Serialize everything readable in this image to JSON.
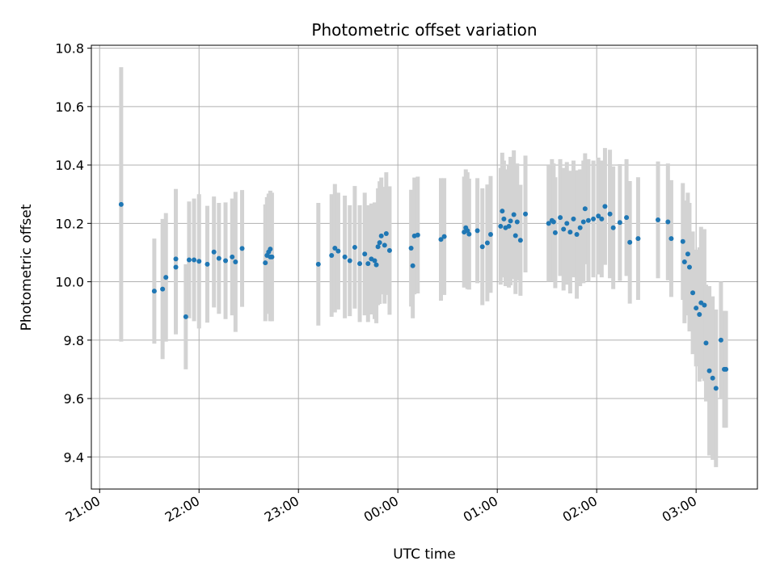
{
  "chart_data": {
    "type": "scatter",
    "title": "Photometric offset variation",
    "xlabel": "UTC time",
    "ylabel": "Photometric offset",
    "xlim": [
      "20:55",
      "03:37"
    ],
    "ylim": [
      9.29,
      10.81
    ],
    "x_ticks": [
      "21:00",
      "22:00",
      "23:00",
      "00:00",
      "01:00",
      "02:00",
      "03:00"
    ],
    "y_ticks": [
      "9.4",
      "9.6",
      "9.8",
      "10.0",
      "10.2",
      "10.4",
      "10.6",
      "10.8"
    ],
    "grid": true,
    "colors": {
      "points": "#1f77b4",
      "error_bars": "#d3d3d3",
      "grid": "#b0b0b0"
    },
    "series": [
      {
        "x": [
          "21:13",
          "21:33",
          "21:38",
          "21:40",
          "21:46",
          "21:46",
          "21:52",
          "21:54",
          "21:57",
          "22:00",
          "22:05",
          "22:09",
          "22:12",
          "22:16",
          "22:20",
          "22:22",
          "22:26",
          "22:40",
          "22:41",
          "22:42",
          "22:43",
          "22:43",
          "22:44",
          "23:12",
          "23:20",
          "23:22",
          "23:24",
          "23:28",
          "23:31",
          "23:34",
          "23:37",
          "23:40",
          "23:42",
          "23:44",
          "23:46",
          "23:47",
          "23:48",
          "23:49",
          "23:50",
          "23:52",
          "23:53",
          "23:55",
          "00:08",
          "00:09",
          "00:10",
          "00:12",
          "00:26",
          "00:28",
          "00:40",
          "00:41",
          "00:42",
          "00:43",
          "00:48",
          "00:51",
          "00:54",
          "00:56",
          "01:02",
          "01:03",
          "01:04",
          "01:05",
          "01:07",
          "01:08",
          "01:10",
          "01:11",
          "01:12",
          "01:14",
          "01:17",
          "01:31",
          "01:33",
          "01:34",
          "01:35",
          "01:38",
          "01:40",
          "01:42",
          "01:44",
          "01:46",
          "01:48",
          "01:50",
          "01:52",
          "01:53",
          "01:55",
          "01:58",
          "02:01",
          "02:03",
          "02:05",
          "02:08",
          "02:10",
          "02:14",
          "02:18",
          "02:20",
          "02:25",
          "02:37",
          "02:43",
          "02:45",
          "02:52",
          "02:53",
          "02:55",
          "02:56",
          "02:58",
          "03:00",
          "03:02",
          "03:03",
          "03:05",
          "03:06",
          "03:08",
          "03:10",
          "03:12",
          "03:15",
          "03:17",
          "03:18"
        ],
        "y": [
          10.265,
          9.968,
          9.975,
          10.015,
          10.05,
          10.078,
          9.88,
          10.075,
          10.075,
          10.07,
          10.06,
          10.102,
          10.08,
          10.072,
          10.085,
          10.068,
          10.114,
          10.065,
          10.09,
          10.102,
          10.085,
          10.112,
          10.085,
          10.06,
          10.09,
          10.115,
          10.105,
          10.085,
          10.072,
          10.118,
          10.062,
          10.095,
          10.062,
          10.078,
          10.072,
          10.058,
          10.12,
          10.134,
          10.157,
          10.125,
          10.165,
          10.107,
          10.115,
          10.055,
          10.157,
          10.16,
          10.145,
          10.155,
          10.17,
          10.185,
          10.175,
          10.163,
          10.175,
          10.12,
          10.133,
          10.162,
          10.19,
          10.242,
          10.215,
          10.185,
          10.19,
          10.208,
          10.23,
          10.158,
          10.205,
          10.142,
          10.232,
          10.2,
          10.21,
          10.205,
          10.168,
          10.22,
          10.18,
          10.2,
          10.17,
          10.215,
          10.162,
          10.185,
          10.205,
          10.25,
          10.21,
          10.215,
          10.225,
          10.215,
          10.258,
          10.232,
          10.185,
          10.203,
          10.22,
          10.135,
          10.148,
          10.212,
          10.205,
          10.148,
          10.138,
          10.068,
          10.095,
          10.05,
          9.962,
          9.91,
          9.888,
          9.928,
          9.92,
          9.79,
          9.695,
          9.67,
          9.635,
          9.8,
          9.7,
          9.7
        ],
        "err": [
          0.47,
          0.18,
          0.24,
          0.22,
          0.23,
          0.24,
          0.18,
          0.2,
          0.21,
          0.23,
          0.2,
          0.19,
          0.19,
          0.2,
          0.2,
          0.24,
          0.2,
          0.2,
          0.2,
          0.2,
          0.22,
          0.2,
          0.22,
          0.21,
          0.21,
          0.22,
          0.2,
          0.21,
          0.19,
          0.21,
          0.2,
          0.21,
          0.2,
          0.19,
          0.2,
          0.2,
          0.2,
          0.21,
          0.2,
          0.2,
          0.21,
          0.22,
          0.2,
          0.18,
          0.2,
          0.2,
          0.21,
          0.2,
          0.19,
          0.2,
          0.2,
          0.19,
          0.18,
          0.2,
          0.2,
          0.2,
          0.2,
          0.2,
          0.2,
          0.2,
          0.21,
          0.22,
          0.22,
          0.2,
          0.2,
          0.19,
          0.2,
          0.2,
          0.21,
          0.2,
          0.19,
          0.2,
          0.21,
          0.21,
          0.21,
          0.2,
          0.22,
          0.2,
          0.21,
          0.19,
          0.21,
          0.2,
          0.2,
          0.2,
          0.2,
          0.22,
          0.21,
          0.2,
          0.2,
          0.21,
          0.21,
          0.2,
          0.2,
          0.2,
          0.2,
          0.21,
          0.21,
          0.22,
          0.21,
          0.2,
          0.23,
          0.26,
          0.26,
          0.2,
          0.29,
          0.28,
          0.27,
          0.2,
          0.2,
          0.2
        ]
      }
    ]
  }
}
